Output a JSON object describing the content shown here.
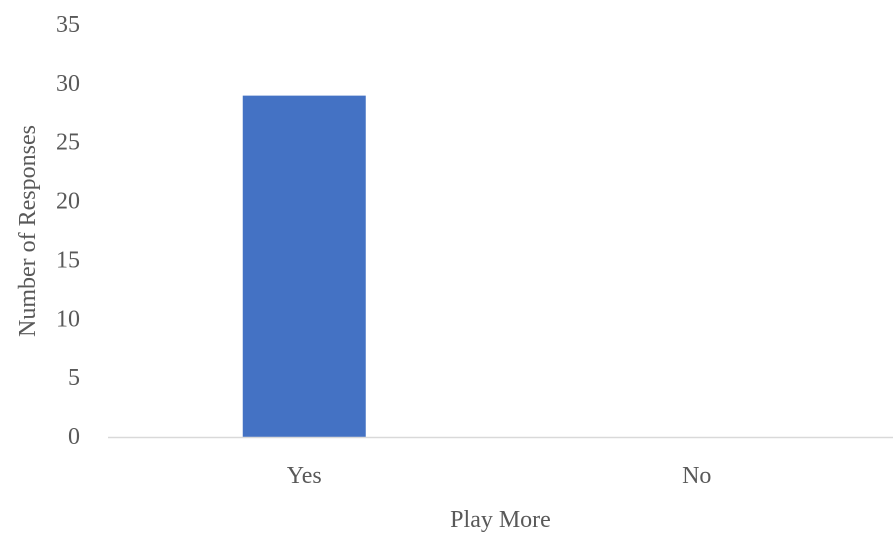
{
  "chart_data": {
    "type": "bar",
    "categories": [
      "Yes",
      "No"
    ],
    "values": [
      29,
      0
    ],
    "title": "",
    "xlabel": "Play More",
    "ylabel": "Number of Responses",
    "ylim": [
      0,
      35
    ],
    "yticks": [
      "0",
      "5",
      "10",
      "15",
      "20",
      "25",
      "30",
      "35"
    ],
    "grid": false,
    "legend": "none",
    "bar_color": "#4472C4",
    "axis_color": "#D9D9D9",
    "text_color": "#595959"
  }
}
